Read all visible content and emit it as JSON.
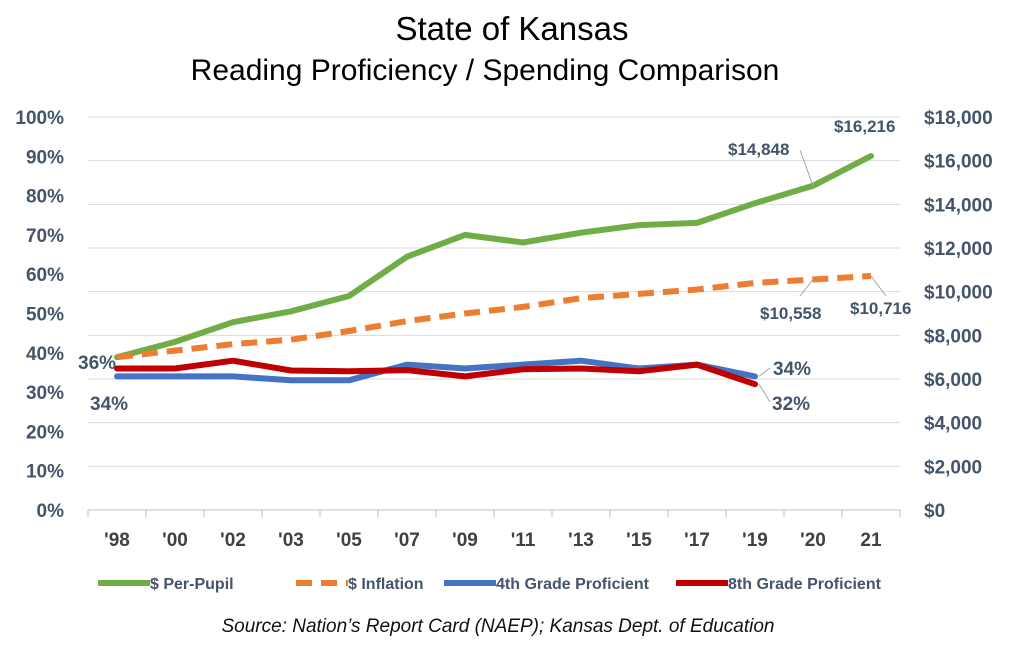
{
  "chart_data": {
    "type": "line",
    "title": "State of Kansas",
    "subtitle": "Reading Proficiency / Spending Comparison",
    "source": "Source: Nation’s Report Card (NAEP); Kansas Dept. of Education",
    "x": [
      "'98",
      "'00",
      "'02",
      "'03",
      "'05",
      "'07",
      "'09",
      "'11",
      "'13",
      "'15",
      "'17",
      "'19",
      "'20",
      "21"
    ],
    "left_axis": {
      "ylim": [
        0,
        100
      ],
      "ticks": [
        "0%",
        "10%",
        "20%",
        "30%",
        "40%",
        "50%",
        "60%",
        "70%",
        "80%",
        "90%",
        "100%"
      ]
    },
    "right_axis": {
      "ylim": [
        0,
        18000
      ],
      "ticks": [
        "$0",
        "$2,000",
        "$4,000",
        "$6,000",
        "$8,000",
        "$10,000",
        "$12,000",
        "$14,000",
        "$16,000",
        "$18,000"
      ]
    },
    "grid": true,
    "legend_position": "bottom",
    "series": [
      {
        "name": "$ Per-Pupil",
        "axis": "right",
        "color": "#70ad47",
        "dash": false,
        "values": [
          7000,
          7700,
          8600,
          9100,
          9800,
          11600,
          12600,
          12250,
          12700,
          13050,
          13150,
          14050,
          14848,
          16216
        ]
      },
      {
        "name": "$ Inflation",
        "axis": "right",
        "color": "#ed7d31",
        "dash": true,
        "values": [
          7000,
          7300,
          7600,
          7800,
          8200,
          8650,
          9000,
          9300,
          9700,
          9900,
          10100,
          10400,
          10558,
          10716
        ]
      },
      {
        "name": "4th Grade Proficient",
        "axis": "left",
        "color": "#4472c4",
        "dash": false,
        "values": [
          34,
          34,
          34,
          33,
          33,
          37,
          36,
          37,
          38,
          36,
          37,
          34,
          null,
          null
        ]
      },
      {
        "name": "8th Grade Proficient",
        "axis": "left",
        "color": "#c00000",
        "dash": false,
        "values": [
          36,
          36,
          38,
          35.5,
          35.3,
          35.6,
          34,
          35.8,
          36,
          35.3,
          37,
          32,
          null,
          null
        ]
      }
    ],
    "annotations": {
      "pp_2020": "$14,848",
      "pp_2021": "$16,216",
      "inf_2020": "$10,558",
      "inf_2021": "$10,716",
      "start_36": "36%",
      "start_34": "34%",
      "end_34": "34%",
      "end_32": "32%"
    }
  }
}
